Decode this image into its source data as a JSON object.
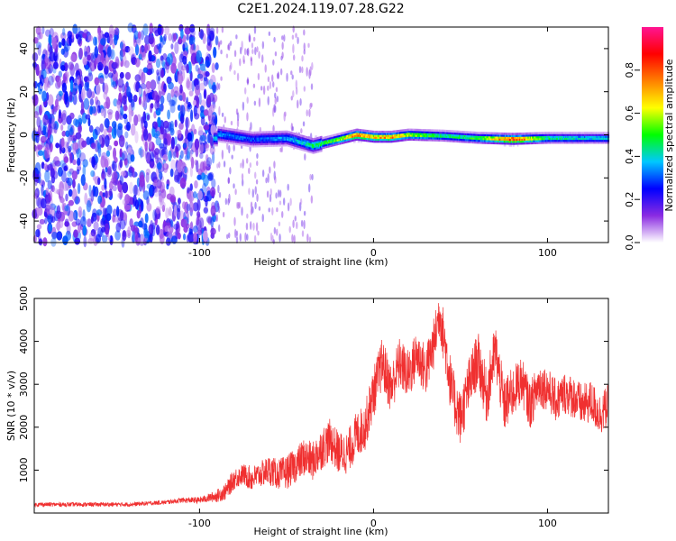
{
  "title": "C2E1.2024.119.07.28.G22",
  "colors": {
    "snr_line": "#f03030",
    "frame": "#000000",
    "background": "#ffffff"
  },
  "chart_data": [
    {
      "type": "heatmap",
      "title": "C2E1.2024.119.07.28.G22",
      "xlabel": "Height of straight line (km)",
      "ylabel": "Frequency (Hz)",
      "xlim": [
        -195,
        135
      ],
      "ylim": [
        -50,
        50
      ],
      "x_ticks": [
        -100,
        0,
        100
      ],
      "x_tick_labels": [
        "-100",
        "0",
        "100"
      ],
      "y_ticks": [
        -40,
        -20,
        0,
        20,
        40
      ],
      "y_tick_labels": [
        "-40",
        "-20",
        "0",
        "20",
        "40"
      ],
      "colorbar": {
        "label": "Normalized spectral amplitude",
        "range": [
          0.0,
          1.0
        ],
        "ticks": [
          0.0,
          0.2,
          0.4,
          0.6,
          0.8
        ],
        "tick_labels": [
          "0.0",
          "0.2",
          "0.4",
          "0.6",
          "0.8"
        ],
        "colormap": [
          "#ffffff",
          "#8a2be2",
          "#0000ff",
          "#00c8ff",
          "#00ff00",
          "#ffff00",
          "#ff8000",
          "#ff0000",
          "#ff1493"
        ]
      },
      "noise_region": {
        "x_range": [
          -195,
          -90
        ],
        "amplitude": 0.15
      },
      "ridge": [
        {
          "x": -90,
          "freq": 0.5,
          "amplitude": 0.35
        },
        {
          "x": -70,
          "freq": -2.0,
          "amplitude": 0.3
        },
        {
          "x": -50,
          "freq": -1.5,
          "amplitude": 0.35
        },
        {
          "x": -35,
          "freq": -5.0,
          "amplitude": 0.45
        },
        {
          "x": -20,
          "freq": -2.0,
          "amplitude": 0.55
        },
        {
          "x": -10,
          "freq": 0.0,
          "amplitude": 0.8
        },
        {
          "x": 0,
          "freq": -1.0,
          "amplitude": 0.7
        },
        {
          "x": 10,
          "freq": -1.0,
          "amplitude": 0.75
        },
        {
          "x": 20,
          "freq": 0.0,
          "amplitude": 0.6
        },
        {
          "x": 40,
          "freq": -0.5,
          "amplitude": 0.45
        },
        {
          "x": 60,
          "freq": -1.5,
          "amplitude": 0.5
        },
        {
          "x": 80,
          "freq": -2.0,
          "amplitude": 0.85
        },
        {
          "x": 100,
          "freq": -1.5,
          "amplitude": 0.45
        },
        {
          "x": 120,
          "freq": -1.5,
          "amplitude": 0.4
        },
        {
          "x": 135,
          "freq": -1.5,
          "amplitude": 0.4
        }
      ]
    },
    {
      "type": "line",
      "title": "",
      "xlabel": "Height of straight line (km)",
      "ylabel": "SNR (10 * v/v)",
      "xlim": [
        -195,
        135
      ],
      "ylim": [
        0,
        5000
      ],
      "x_ticks": [
        -100,
        0,
        100
      ],
      "x_tick_labels": [
        "-100",
        "0",
        "100"
      ],
      "y_ticks": [
        1000,
        2000,
        3000,
        4000,
        5000
      ],
      "y_tick_labels": [
        "1000",
        "2000",
        "3000",
        "4000",
        "5000"
      ],
      "series": [
        {
          "color": "#f03030",
          "x": [
            -195,
            -180,
            -160,
            -140,
            -120,
            -110,
            -100,
            -95,
            -90,
            -85,
            -80,
            -75,
            -70,
            -65,
            -60,
            -55,
            -50,
            -45,
            -40,
            -35,
            -30,
            -25,
            -20,
            -15,
            -10,
            -5,
            0,
            5,
            10,
            15,
            20,
            25,
            30,
            35,
            38,
            42,
            45,
            50,
            55,
            60,
            65,
            70,
            75,
            80,
            85,
            90,
            95,
            100,
            105,
            110,
            115,
            120,
            125,
            130,
            135
          ],
          "y": [
            200,
            200,
            200,
            200,
            250,
            300,
            300,
            350,
            400,
            500,
            800,
            900,
            800,
            900,
            1000,
            900,
            950,
            1100,
            1300,
            1200,
            1500,
            1700,
            1400,
            1400,
            1800,
            2000,
            2800,
            3500,
            2900,
            3500,
            3200,
            3700,
            3300,
            4000,
            4700,
            3700,
            2800,
            2200,
            3000,
            3600,
            2700,
            3800,
            2500,
            2800,
            3100,
            2500,
            3000,
            2900,
            2600,
            2800,
            2700,
            2500,
            2600,
            2300,
            2500
          ],
          "amplitude": [
            100,
            100,
            100,
            100,
            100,
            120,
            150,
            200,
            300,
            400,
            500,
            500,
            600,
            600,
            700,
            700,
            800,
            800,
            900,
            900,
            1000,
            1000,
            1000,
            1000,
            1100,
            1100,
            1200,
            1200,
            1200,
            1200,
            1200,
            1200,
            1200,
            1200,
            1200,
            1300,
            1300,
            1300,
            1300,
            1300,
            1300,
            1300,
            1300,
            1200,
            1100,
            1100,
            1100,
            1000,
            1000,
            1000,
            1000,
            1000,
            1000,
            1000,
            1000
          ]
        }
      ]
    }
  ]
}
